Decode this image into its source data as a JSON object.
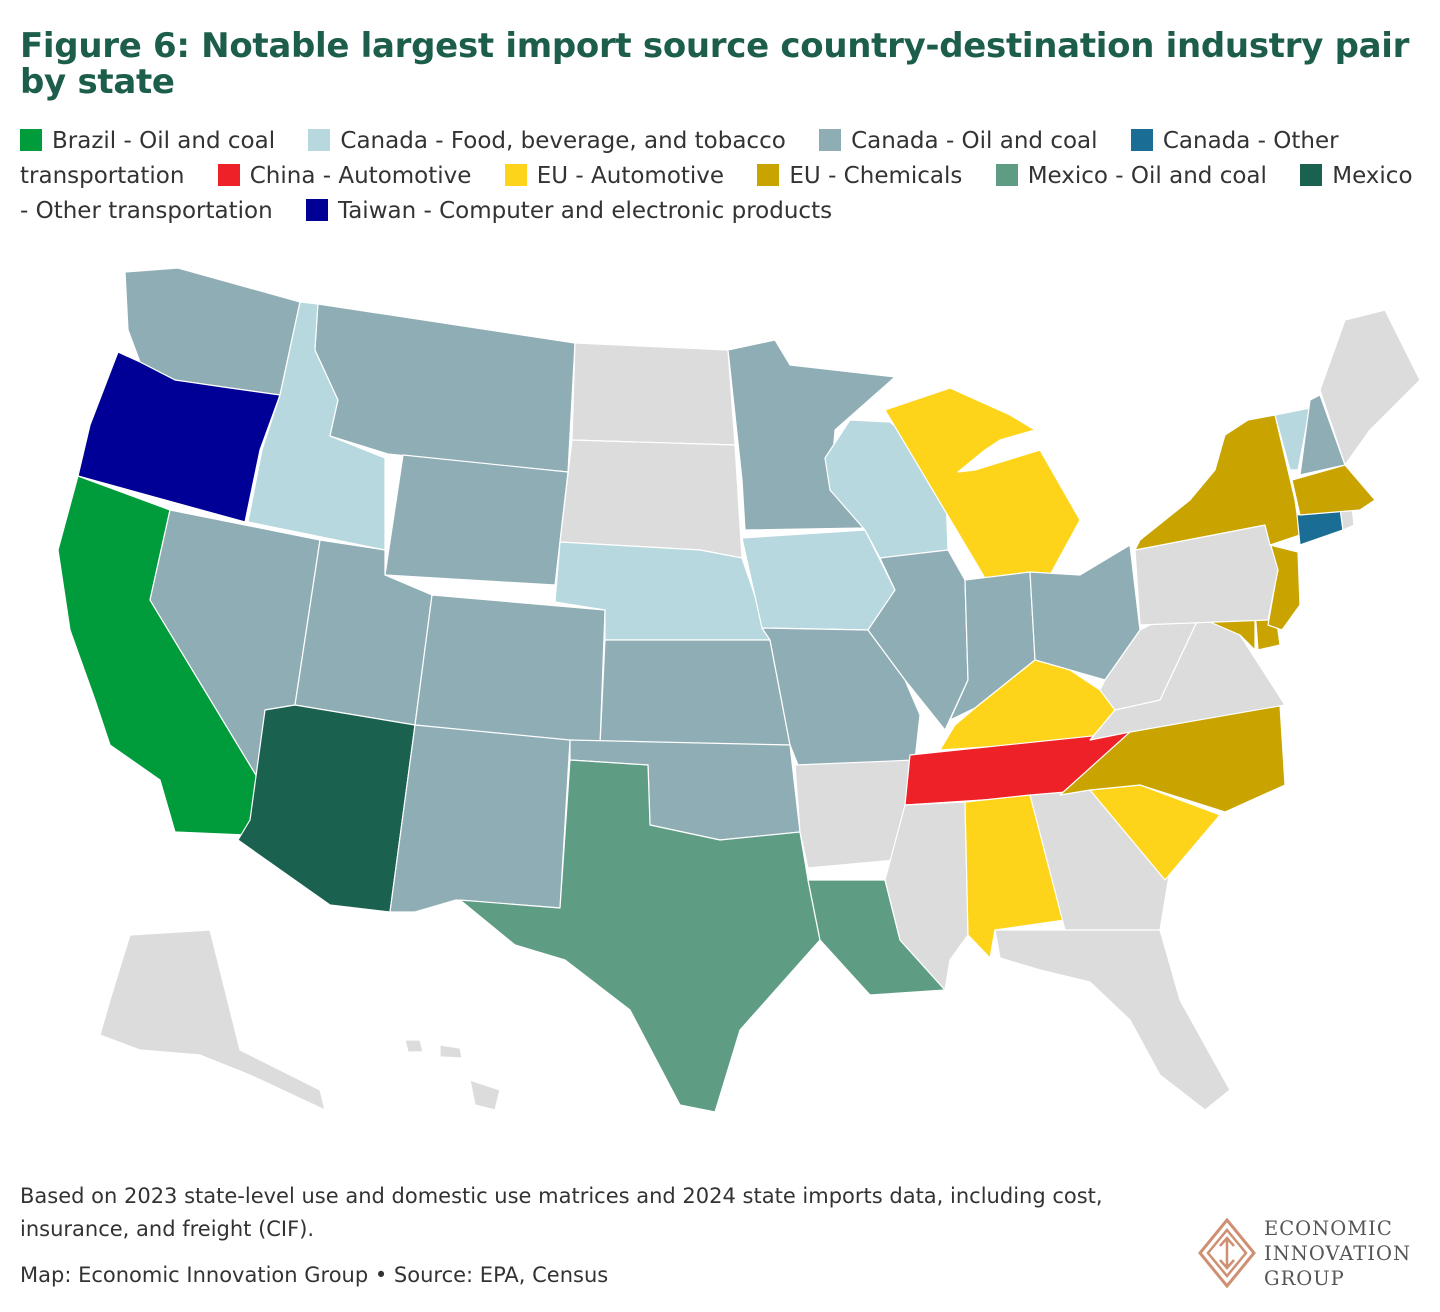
{
  "title": "Figure 6: Notable largest import source country-destination industry pair by state",
  "legend": [
    {
      "label": "Brazil - Oil and coal",
      "color": "#009b3a"
    },
    {
      "label": "Canada - Food, beverage, and tobacco",
      "color": "#b6d8de"
    },
    {
      "label": "Canada - Oil and coal",
      "color": "#8fadb4"
    },
    {
      "label": "Canada - Other transportation",
      "color": "#1a6e96"
    },
    {
      "label": "China - Automotive",
      "color": "#ee2128"
    },
    {
      "label": "EU - Automotive",
      "color": "#fdd419"
    },
    {
      "label": "EU - Chemicals",
      "color": "#c9a400"
    },
    {
      "label": "Mexico - Oil and coal",
      "color": "#5f9c84"
    },
    {
      "label": "Mexico - Other transportation",
      "color": "#1b6150"
    },
    {
      "label": "Taiwan - Computer and electronic products",
      "color": "#000096"
    }
  ],
  "no_data_color": "#dcdcdc",
  "map": {
    "WA": "Canada - Oil and coal",
    "OR": "Taiwan - Computer and electronic products",
    "CA": "Brazil - Oil and coal",
    "ID": "Canada - Food, beverage, and tobacco",
    "NV": "Canada - Oil and coal",
    "MT": "Canada - Oil and coal",
    "WY": "Canada - Oil and coal",
    "UT": "Canada - Oil and coal",
    "CO": "Canada - Oil and coal",
    "AZ": "Mexico - Other transportation",
    "NM": "Canada - Oil and coal",
    "ND": null,
    "SD": null,
    "NE": "Canada - Food, beverage, and tobacco",
    "KS": "Canada - Oil and coal",
    "OK": "Canada - Oil and coal",
    "TX": "Mexico - Oil and coal",
    "MN": "Canada - Oil and coal",
    "IA": "Canada - Food, beverage, and tobacco",
    "MO": "Canada - Oil and coal",
    "AR": null,
    "LA": "Mexico - Oil and coal",
    "WI": "Canada - Food, beverage, and tobacco",
    "IL": "Canada - Oil and coal",
    "MI": "EU - Automotive",
    "IN": "Canada - Oil and coal",
    "OH": "Canada - Oil and coal",
    "KY": "EU - Automotive",
    "TN": "China - Automotive",
    "MS": null,
    "AL": "EU - Automotive",
    "GA": null,
    "FL": null,
    "SC": "EU - Automotive",
    "NC": "EU - Chemicals",
    "VA": null,
    "WV": null,
    "MD": "EU - Chemicals",
    "DE": "EU - Chemicals",
    "NJ": "EU - Chemicals",
    "PA": null,
    "NY": "EU - Chemicals",
    "CT": "Canada - Other transportation",
    "RI": null,
    "MA": "EU - Chemicals",
    "VT": "Canada - Food, beverage, and tobacco",
    "NH": "Canada - Oil and coal",
    "ME": null,
    "AK": null,
    "HI": null
  },
  "footnote": "Based on 2023 state-level use and domestic use matrices and 2024 state imports data, including cost, insurance, and freight (CIF).",
  "source": "Map: Economic Innovation Group • Source: EPA, Census",
  "logo": {
    "lines": [
      "ECONOMIC",
      "INNOVATION",
      "GROUP"
    ]
  }
}
